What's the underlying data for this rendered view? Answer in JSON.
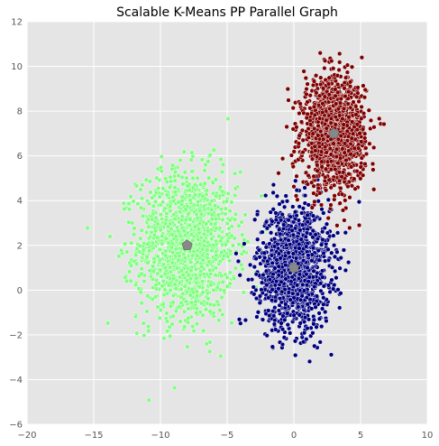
{
  "chart_data": {
    "type": "scatter",
    "title": "Scalable K-Means PP Parallel Graph",
    "xlabel": "",
    "ylabel": "",
    "xlim": [
      -20,
      10
    ],
    "ylim": [
      -6,
      12
    ],
    "x_ticks": [
      -20,
      -15,
      -10,
      -5,
      0,
      5,
      10
    ],
    "y_ticks": [
      -6,
      -4,
      -2,
      0,
      2,
      4,
      6,
      8,
      10,
      12
    ],
    "grid": true,
    "background": "#e5e5e5",
    "grid_color": "#ffffff",
    "clusters": [
      {
        "color": "#7fff7f",
        "center": [
          -8,
          2
        ],
        "sd": [
          1.85,
          1.65
        ],
        "n": 1400
      },
      {
        "color": "#00007f",
        "center": [
          0,
          1
        ],
        "sd": [
          1.35,
          1.35
        ],
        "n": 1400
      },
      {
        "color": "#7f0000",
        "center": [
          3,
          7
        ],
        "sd": [
          1.15,
          1.2
        ],
        "n": 1400
      }
    ],
    "centroids": [
      [
        -8,
        2
      ],
      [
        0,
        1
      ],
      [
        3,
        7
      ]
    ],
    "centroid_color": "#888888"
  }
}
